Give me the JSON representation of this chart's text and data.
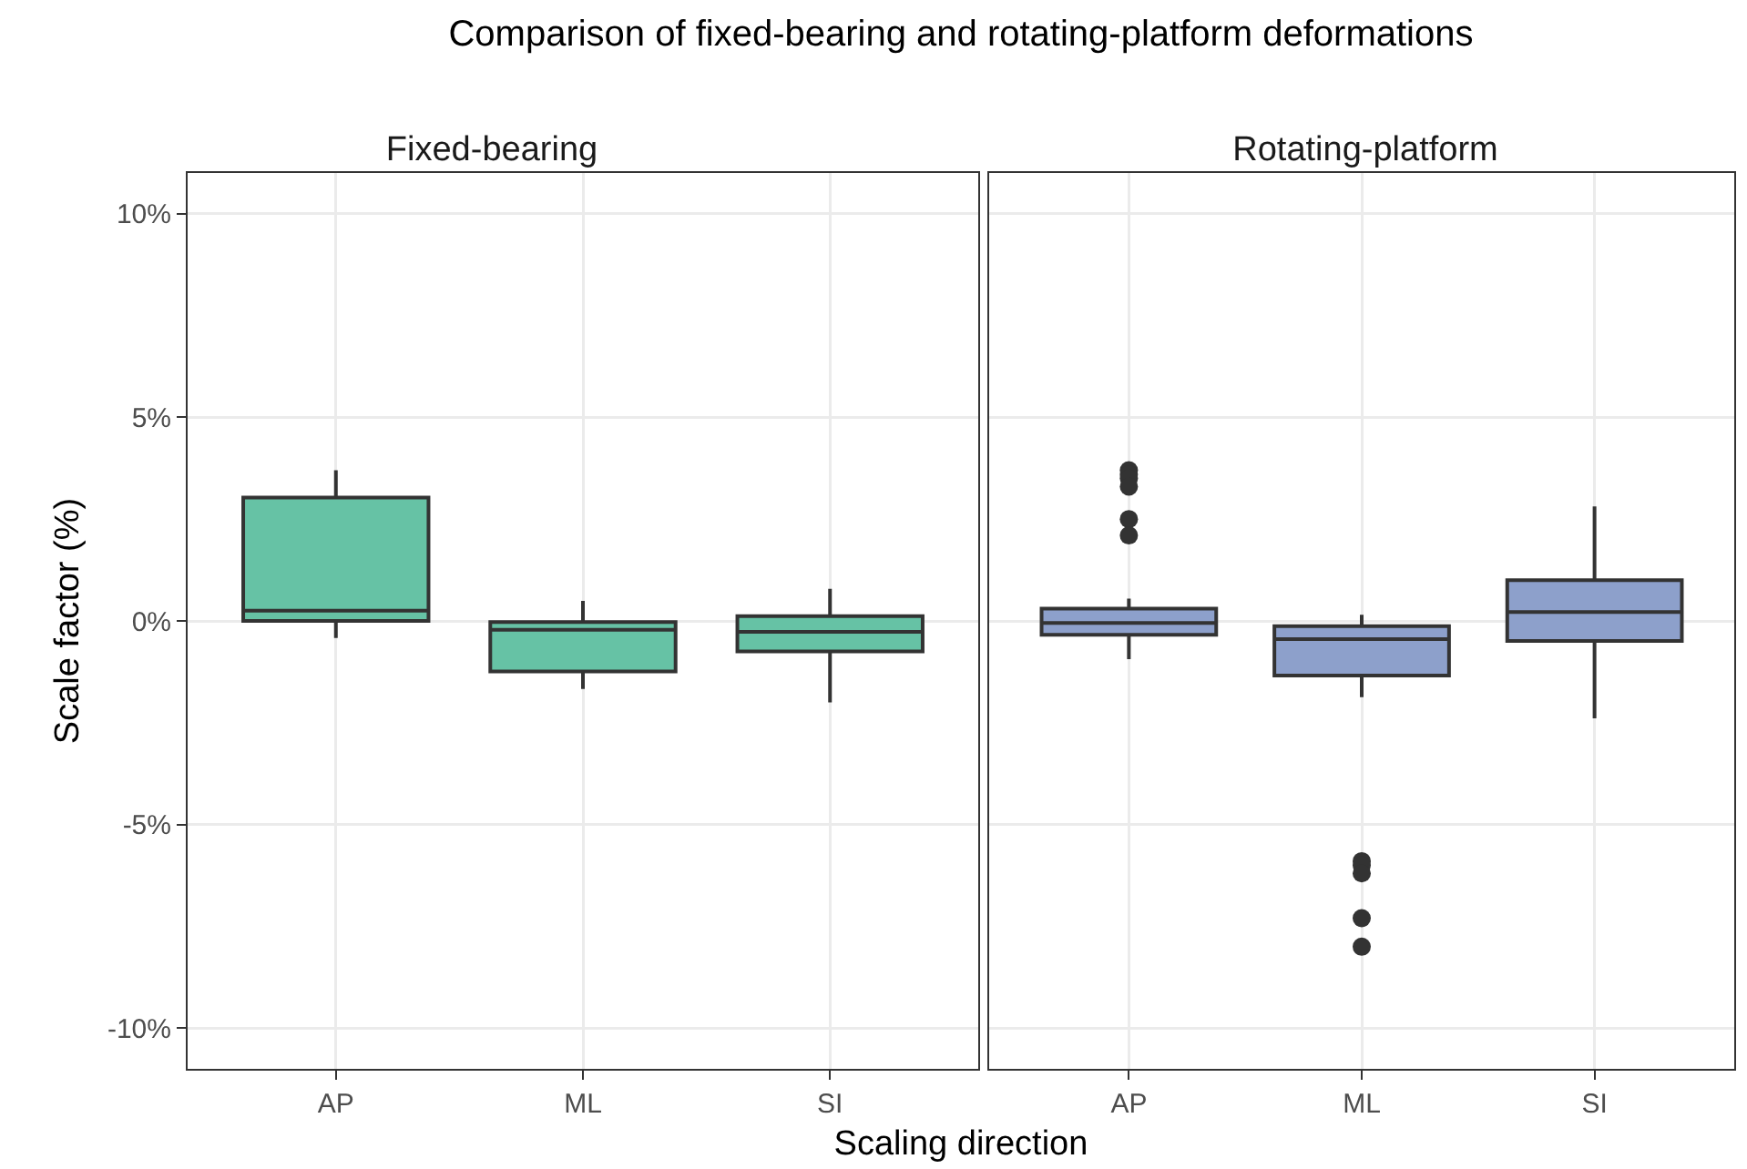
{
  "chart_data": [
    {
      "type": "box",
      "title": "Comparison of fixed-bearing and rotating-platform deformations",
      "subtitle": "Fixed-bearing",
      "xlabel": "Scaling direction",
      "ylabel": "Scale factor (%)",
      "categories": [
        "AP",
        "ML",
        "SI"
      ],
      "ylim": [
        -11,
        11
      ],
      "yticks": [
        {
          "value": -10,
          "label": "-10%"
        },
        {
          "value": -5,
          "label": "-5%"
        },
        {
          "value": 0,
          "label": "0%"
        },
        {
          "value": 5,
          "label": "5%"
        },
        {
          "value": 10,
          "label": "10%"
        }
      ],
      "grid": true,
      "series": [
        {
          "color": "#66c2a5",
          "boxes": [
            {
              "low": -0.42,
              "q1": 0,
              "median": 0.25,
              "q3": 3.03,
              "high": 3.7
            },
            {
              "low": -1.67,
              "q1": -1.24,
              "median": -0.22,
              "q3": -0.03,
              "high": 0.49
            },
            {
              "low": -2.0,
              "q1": -0.75,
              "median": -0.27,
              "q3": 0.12,
              "high": 0.79
            }
          ]
        }
      ]
    },
    {
      "type": "box",
      "subtitle": "Rotating-platform",
      "categories": [
        "AP",
        "ML",
        "SI"
      ],
      "ylim": [
        -11,
        11
      ],
      "yticks": [
        {
          "value": -10,
          "label": null
        },
        {
          "value": -5,
          "label": null
        },
        {
          "value": 0,
          "label": null
        },
        {
          "value": 5,
          "label": null
        },
        {
          "value": 10,
          "label": null
        }
      ],
      "grid": true,
      "tick_labels": "x",
      "series": [
        {
          "color": "#8da0cb",
          "boxes": [
            {
              "low": -0.94,
              "q1": -0.34,
              "median": -0.05,
              "q3": 0.3,
              "high": 0.55,
              "outliers": [
                3.7,
                3.6,
                3.5,
                3.3,
                2.5,
                2.1
              ]
            },
            {
              "low": -1.87,
              "q1": -1.34,
              "median": -0.45,
              "q3": -0.13,
              "high": 0.15,
              "outliers": [
                -5.9,
                -6.0,
                -6.2,
                -7.3,
                -8.0
              ]
            },
            {
              "low": -2.39,
              "q1": -0.49,
              "median": 0.22,
              "q3": 1.0,
              "high": 2.81
            }
          ]
        }
      ]
    }
  ]
}
